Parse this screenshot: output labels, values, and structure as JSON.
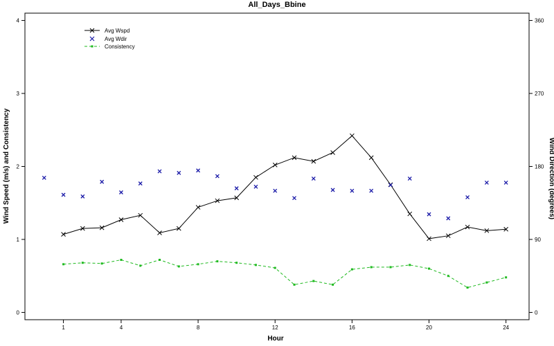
{
  "chart_data": {
    "type": "line",
    "title": "All_Days_Bbine",
    "xlabel": "Hour",
    "ylabel_left": "Wind Speed (m/s) and Consistency",
    "ylabel_right": "Wind Direction (degrees)",
    "xlim": [
      -1,
      25.2
    ],
    "ylim_left": [
      -0.1,
      4.1
    ],
    "ylim_right": [
      -9,
      369
    ],
    "x_ticks": [
      1,
      4,
      8,
      12,
      16,
      20,
      24
    ],
    "y_ticks_left": [
      0,
      1,
      2,
      3,
      4
    ],
    "y_ticks_right": [
      0,
      90,
      180,
      270,
      360
    ],
    "legend_position": "top-left",
    "series": [
      {
        "name": "Avg Wspd",
        "axis": "left",
        "style": "line-x-marker",
        "color": "#000000",
        "x": [
          1,
          2,
          3,
          4,
          5,
          6,
          7,
          8,
          9,
          10,
          11,
          12,
          13,
          14,
          15,
          16,
          17,
          18,
          19,
          20,
          21,
          22,
          23,
          24
        ],
        "y": [
          1.07,
          1.15,
          1.16,
          1.27,
          1.33,
          1.09,
          1.15,
          1.44,
          1.53,
          1.57,
          1.85,
          2.02,
          2.12,
          2.07,
          2.19,
          2.42,
          2.12,
          1.75,
          1.35,
          1.01,
          1.05,
          1.17,
          1.12,
          1.14
        ]
      },
      {
        "name": "Avg Wdir",
        "axis": "right",
        "style": "x-marker",
        "color": "#1a1aa8",
        "x": [
          0,
          1,
          2,
          3,
          4,
          5,
          6,
          7,
          8,
          9,
          10,
          11,
          12,
          13,
          14,
          15,
          16,
          17,
          18,
          19,
          20,
          21,
          22,
          23,
          24
        ],
        "y": [
          166,
          145,
          143,
          161,
          148,
          159,
          174,
          172,
          175,
          168,
          153,
          155,
          150,
          141,
          165,
          151,
          150,
          150,
          157,
          165,
          121,
          116,
          142,
          160,
          160
        ]
      },
      {
        "name": "Consistency",
        "axis": "left",
        "style": "dashed-square-marker",
        "color": "#1fba1f",
        "x": [
          1,
          2,
          3,
          4,
          5,
          6,
          7,
          8,
          9,
          10,
          11,
          12,
          13,
          14,
          15,
          16,
          17,
          18,
          19,
          20,
          21,
          22,
          23,
          24
        ],
        "y": [
          0.66,
          0.68,
          0.67,
          0.72,
          0.64,
          0.72,
          0.63,
          0.66,
          0.7,
          0.68,
          0.65,
          0.61,
          0.38,
          0.43,
          0.38,
          0.59,
          0.62,
          0.62,
          0.65,
          0.6,
          0.5,
          0.34,
          0.41,
          0.48
        ]
      }
    ]
  }
}
